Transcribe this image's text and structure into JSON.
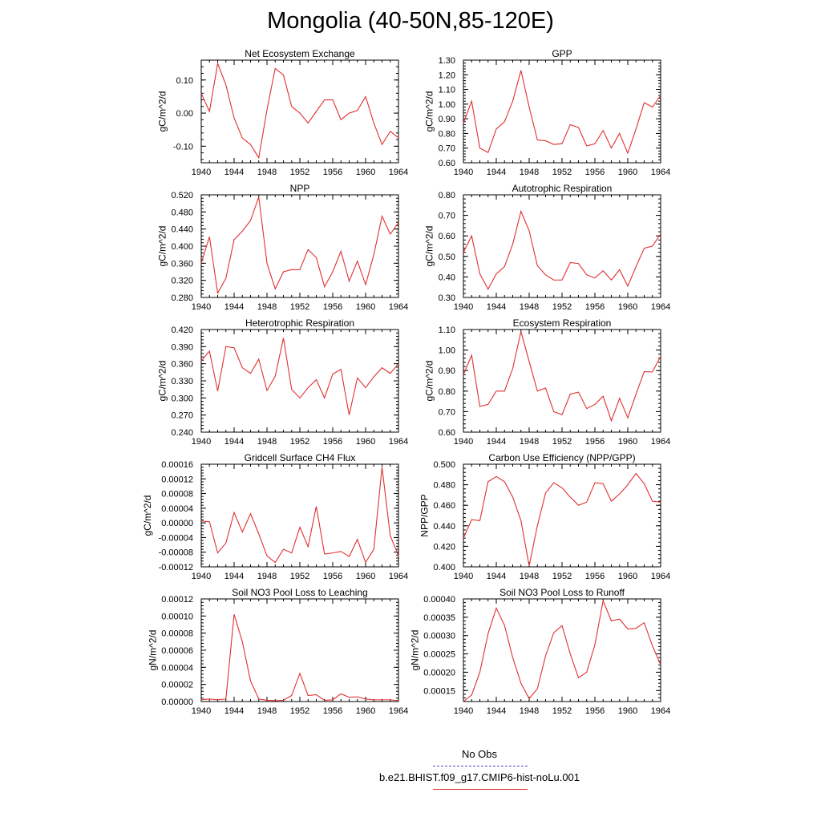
{
  "title": "Mongolia (40-50N,85-120E)",
  "legend": {
    "entries": [
      {
        "label": "No Obs",
        "color": "#4a4ad0",
        "style": "dashed"
      },
      {
        "label": "b.e21.BHIST.f09_g17.CMIP6-hist-noLu.001",
        "color": "#e03030",
        "style": "solid"
      }
    ]
  },
  "chart_data": [
    {
      "type": "line",
      "title": "Net Ecosystem Exchange",
      "ylabel": "gC/m^2/d",
      "xlim": [
        1940,
        1964
      ],
      "ylim": [
        -0.15,
        0.16
      ],
      "xticks": [
        "1940",
        "1944",
        "1948",
        "1952",
        "1956",
        "1960",
        "1964"
      ],
      "yticks": [
        -0.1,
        0.0,
        0.1
      ],
      "yticklabels": [
        "-0.10",
        "0.00",
        "0.10"
      ],
      "x": [
        1940,
        1941,
        1942,
        1943,
        1944,
        1945,
        1946,
        1947,
        1948,
        1949,
        1950,
        1951,
        1952,
        1953,
        1954,
        1955,
        1956,
        1957,
        1958,
        1959,
        1960,
        1961,
        1962,
        1963,
        1964
      ],
      "series": [
        {
          "color": "#e03030",
          "values": [
            0.06,
            0.005,
            0.15,
            0.085,
            -0.015,
            -0.075,
            -0.095,
            -0.135,
            0.01,
            0.135,
            0.115,
            0.02,
            0.0,
            -0.03,
            0.005,
            0.04,
            0.04,
            -0.02,
            0.0,
            0.008,
            0.05,
            -0.03,
            -0.095,
            -0.055,
            -0.075
          ]
        }
      ]
    },
    {
      "type": "line",
      "title": "GPP",
      "ylabel": "gC/m^2/d",
      "xlim": [
        1940,
        1964
      ],
      "ylim": [
        0.6,
        1.3
      ],
      "xticks": [
        "1940",
        "1944",
        "1948",
        "1952",
        "1956",
        "1960",
        "1964"
      ],
      "yticks": [
        0.6,
        0.7,
        0.8,
        0.9,
        1.0,
        1.1,
        1.2,
        1.3
      ],
      "yticklabels": [
        "0.60",
        "0.70",
        "0.80",
        "0.90",
        "1.00",
        "1.10",
        "1.20",
        "1.30"
      ],
      "x": [
        1940,
        1941,
        1942,
        1943,
        1944,
        1945,
        1946,
        1947,
        1948,
        1949,
        1950,
        1951,
        1952,
        1953,
        1954,
        1955,
        1956,
        1957,
        1958,
        1959,
        1960,
        1961,
        1962,
        1963,
        1964
      ],
      "series": [
        {
          "color": "#e03030",
          "values": [
            0.87,
            1.02,
            0.7,
            0.67,
            0.83,
            0.88,
            1.02,
            1.23,
            0.98,
            0.755,
            0.75,
            0.725,
            0.73,
            0.86,
            0.84,
            0.715,
            0.73,
            0.82,
            0.7,
            0.8,
            0.665,
            0.83,
            1.01,
            0.98,
            1.06
          ]
        }
      ]
    },
    {
      "type": "line",
      "title": "NPP",
      "ylabel": "gC/m^2/d",
      "xlim": [
        1940,
        1964
      ],
      "ylim": [
        0.28,
        0.52
      ],
      "xticks": [
        "1940",
        "1944",
        "1948",
        "1952",
        "1956",
        "1960",
        "1964"
      ],
      "yticks": [
        0.28,
        0.32,
        0.36,
        0.4,
        0.44,
        0.48,
        0.52
      ],
      "yticklabels": [
        "0.280",
        "0.320",
        "0.360",
        "0.400",
        "0.440",
        "0.480",
        "0.520"
      ],
      "x": [
        1940,
        1941,
        1942,
        1943,
        1944,
        1945,
        1946,
        1947,
        1948,
        1949,
        1950,
        1951,
        1952,
        1953,
        1954,
        1955,
        1956,
        1957,
        1958,
        1959,
        1960,
        1961,
        1962,
        1963,
        1964
      ],
      "series": [
        {
          "color": "#e03030",
          "values": [
            0.36,
            0.422,
            0.29,
            0.325,
            0.415,
            0.435,
            0.46,
            0.515,
            0.36,
            0.3,
            0.34,
            0.345,
            0.345,
            0.392,
            0.373,
            0.305,
            0.34,
            0.388,
            0.318,
            0.365,
            0.31,
            0.38,
            0.47,
            0.428,
            0.455
          ]
        }
      ]
    },
    {
      "type": "line",
      "title": "Autotrophic Respiration",
      "ylabel": "gC/m^2/d",
      "xlim": [
        1940,
        1964
      ],
      "ylim": [
        0.3,
        0.8
      ],
      "xticks": [
        "1940",
        "1944",
        "1948",
        "1952",
        "1956",
        "1960",
        "1964"
      ],
      "yticks": [
        0.3,
        0.4,
        0.5,
        0.6,
        0.7,
        0.8
      ],
      "yticklabels": [
        "0.30",
        "0.40",
        "0.50",
        "0.60",
        "0.70",
        "0.80"
      ],
      "x": [
        1940,
        1941,
        1942,
        1943,
        1944,
        1945,
        1946,
        1947,
        1948,
        1949,
        1950,
        1951,
        1952,
        1953,
        1954,
        1955,
        1956,
        1957,
        1958,
        1959,
        1960,
        1961,
        1962,
        1963,
        1964
      ],
      "series": [
        {
          "color": "#e03030",
          "values": [
            0.52,
            0.6,
            0.415,
            0.34,
            0.415,
            0.45,
            0.56,
            0.72,
            0.625,
            0.455,
            0.41,
            0.385,
            0.385,
            0.47,
            0.465,
            0.41,
            0.395,
            0.43,
            0.385,
            0.435,
            0.355,
            0.45,
            0.54,
            0.55,
            0.61
          ]
        }
      ]
    },
    {
      "type": "line",
      "title": "Heterotrophic Respiration",
      "ylabel": "gC/m^2/d",
      "xlim": [
        1940,
        1964
      ],
      "ylim": [
        0.24,
        0.42
      ],
      "xticks": [
        "1940",
        "1944",
        "1948",
        "1952",
        "1956",
        "1960",
        "1964"
      ],
      "yticks": [
        0.24,
        0.27,
        0.3,
        0.33,
        0.36,
        0.39,
        0.42
      ],
      "yticklabels": [
        "0.240",
        "0.270",
        "0.300",
        "0.330",
        "0.360",
        "0.390",
        "0.420"
      ],
      "x": [
        1940,
        1941,
        1942,
        1943,
        1944,
        1945,
        1946,
        1947,
        1948,
        1949,
        1950,
        1951,
        1952,
        1953,
        1954,
        1955,
        1956,
        1957,
        1958,
        1959,
        1960,
        1961,
        1962,
        1963,
        1964
      ],
      "series": [
        {
          "color": "#e03030",
          "values": [
            0.365,
            0.382,
            0.312,
            0.39,
            0.388,
            0.353,
            0.343,
            0.368,
            0.313,
            0.338,
            0.405,
            0.315,
            0.3,
            0.318,
            0.332,
            0.3,
            0.342,
            0.35,
            0.27,
            0.335,
            0.318,
            0.337,
            0.353,
            0.343,
            0.36
          ]
        }
      ]
    },
    {
      "type": "line",
      "title": "Ecosystem Respiration",
      "ylabel": "gC/m^2/d",
      "xlim": [
        1940,
        1964
      ],
      "ylim": [
        0.6,
        1.1
      ],
      "xticks": [
        "1940",
        "1944",
        "1948",
        "1952",
        "1956",
        "1960",
        "1964"
      ],
      "yticks": [
        0.6,
        0.7,
        0.8,
        0.9,
        1.0,
        1.1
      ],
      "yticklabels": [
        "0.60",
        "0.70",
        "0.80",
        "0.90",
        "1.00",
        "1.10"
      ],
      "x": [
        1940,
        1941,
        1942,
        1943,
        1944,
        1945,
        1946,
        1947,
        1948,
        1949,
        1950,
        1951,
        1952,
        1953,
        1954,
        1955,
        1956,
        1957,
        1958,
        1959,
        1960,
        1961,
        1962,
        1963,
        1964
      ],
      "series": [
        {
          "color": "#e03030",
          "values": [
            0.88,
            0.975,
            0.725,
            0.735,
            0.8,
            0.8,
            0.91,
            1.09,
            0.945,
            0.8,
            0.815,
            0.7,
            0.685,
            0.785,
            0.795,
            0.715,
            0.735,
            0.775,
            0.655,
            0.765,
            0.67,
            0.785,
            0.895,
            0.893,
            0.97
          ]
        }
      ]
    },
    {
      "type": "line",
      "title": "Gridcell Surface CH4 Flux",
      "ylabel": "gC/m^2/d",
      "xlim": [
        1940,
        1964
      ],
      "ylim": [
        -0.00012,
        0.00016
      ],
      "xticks": [
        "1940",
        "1944",
        "1948",
        "1952",
        "1956",
        "1960",
        "1964"
      ],
      "yticks": [
        -0.00012,
        -8e-05,
        -4e-05,
        0.0,
        4e-05,
        8e-05,
        0.00012,
        0.00016
      ],
      "yticklabels": [
        "-0.00012",
        "-0.00008",
        "-0.00004",
        "0.00000",
        "0.00004",
        "0.00008",
        "0.00012",
        "0.00016"
      ],
      "x": [
        1940,
        1941,
        1942,
        1943,
        1944,
        1945,
        1946,
        1947,
        1948,
        1949,
        1950,
        1951,
        1952,
        1953,
        1954,
        1955,
        1956,
        1957,
        1958,
        1959,
        1960,
        1961,
        1962,
        1963,
        1964
      ],
      "series": [
        {
          "color": "#e03030",
          "values": [
            5e-06,
            3e-06,
            -8.2e-05,
            -5.5e-05,
            2.8e-05,
            -2.5e-05,
            2.5e-05,
            -3e-05,
            -9e-05,
            -0.000108,
            -7.2e-05,
            -8.2e-05,
            -1.2e-05,
            -6.5e-05,
            4.5e-05,
            -8.5e-05,
            -8.2e-05,
            -7.8e-05,
            -9.2e-05,
            -4.5e-05,
            -0.000108,
            -7.2e-05,
            0.000152,
            -3.5e-05,
            -9e-05
          ]
        }
      ]
    },
    {
      "type": "line",
      "title": "Carbon Use Efficiency (NPP/GPP)",
      "ylabel": "NPP/GPP",
      "xlim": [
        1940,
        1964
      ],
      "ylim": [
        0.4,
        0.5
      ],
      "xticks": [
        "1940",
        "1944",
        "1948",
        "1952",
        "1956",
        "1960",
        "1964"
      ],
      "yticks": [
        0.4,
        0.42,
        0.44,
        0.46,
        0.48,
        0.5
      ],
      "yticklabels": [
        "0.400",
        "0.420",
        "0.440",
        "0.460",
        "0.480",
        "0.500"
      ],
      "x": [
        1940,
        1941,
        1942,
        1943,
        1944,
        1945,
        1946,
        1947,
        1948,
        1949,
        1950,
        1951,
        1952,
        1953,
        1954,
        1955,
        1956,
        1957,
        1958,
        1959,
        1960,
        1961,
        1962,
        1963,
        1964
      ],
      "series": [
        {
          "color": "#e03030",
          "values": [
            0.428,
            0.446,
            0.445,
            0.483,
            0.488,
            0.483,
            0.468,
            0.445,
            0.401,
            0.44,
            0.472,
            0.482,
            0.477,
            0.468,
            0.46,
            0.463,
            0.482,
            0.481,
            0.464,
            0.471,
            0.48,
            0.491,
            0.481,
            0.464,
            0.463
          ]
        }
      ]
    },
    {
      "type": "line",
      "title": "Soil NO3 Pool Loss to Leaching",
      "ylabel": "gN/m^2/d",
      "xlim": [
        1940,
        1964
      ],
      "ylim": [
        0.0,
        0.00012
      ],
      "xticks": [
        "1940",
        "1944",
        "1948",
        "1952",
        "1956",
        "1960",
        "1964"
      ],
      "yticks": [
        0.0,
        2e-05,
        4e-05,
        6e-05,
        8e-05,
        0.0001,
        0.00012
      ],
      "yticklabels": [
        "0.00000",
        "0.00002",
        "0.00004",
        "0.00006",
        "0.00008",
        "0.00010",
        "0.00012"
      ],
      "x": [
        1940,
        1941,
        1942,
        1943,
        1944,
        1945,
        1946,
        1947,
        1948,
        1949,
        1950,
        1951,
        1952,
        1953,
        1954,
        1955,
        1956,
        1957,
        1958,
        1959,
        1960,
        1961,
        1962,
        1963,
        1964
      ],
      "series": [
        {
          "color": "#e03030",
          "values": [
            2e-06,
            3e-06,
            2e-06,
            3e-06,
            0.000102,
            7e-05,
            2.4e-05,
            3e-06,
            1.5e-06,
            1e-06,
            1.5e-06,
            7e-06,
            3.3e-05,
            7e-06,
            8e-06,
            1.5e-06,
            2e-06,
            9e-06,
            5e-06,
            5.5e-06,
            3e-06,
            2e-06,
            2e-06,
            2e-06,
            1e-06
          ]
        }
      ]
    },
    {
      "type": "line",
      "title": "Soil NO3 Pool Loss to Runoff",
      "ylabel": "gN/m^2/d",
      "xlim": [
        1940,
        1964
      ],
      "ylim": [
        0.00012,
        0.0004
      ],
      "xticks": [
        "1940",
        "1944",
        "1948",
        "1952",
        "1956",
        "1960",
        "1964"
      ],
      "yticks": [
        0.00015,
        0.0002,
        0.00025,
        0.0003,
        0.00035,
        0.0004
      ],
      "yticklabels": [
        "0.00015",
        "0.00020",
        "0.00025",
        "0.00030",
        "0.00035",
        "0.00040"
      ],
      "x": [
        1940,
        1941,
        1942,
        1943,
        1944,
        1945,
        1946,
        1947,
        1948,
        1949,
        1950,
        1951,
        1952,
        1953,
        1954,
        1955,
        1956,
        1957,
        1958,
        1959,
        1960,
        1961,
        1962,
        1963,
        1964
      ],
      "series": [
        {
          "color": "#e03030",
          "values": [
            0.00012,
            0.000138,
            0.0002,
            0.000305,
            0.000375,
            0.000328,
            0.00024,
            0.00017,
            0.000128,
            0.000155,
            0.000245,
            0.000308,
            0.000327,
            0.00025,
            0.000185,
            0.0002,
            0.000275,
            0.000395,
            0.00034,
            0.000345,
            0.000318,
            0.00032,
            0.000335,
            0.000272,
            0.00022
          ]
        }
      ]
    }
  ]
}
